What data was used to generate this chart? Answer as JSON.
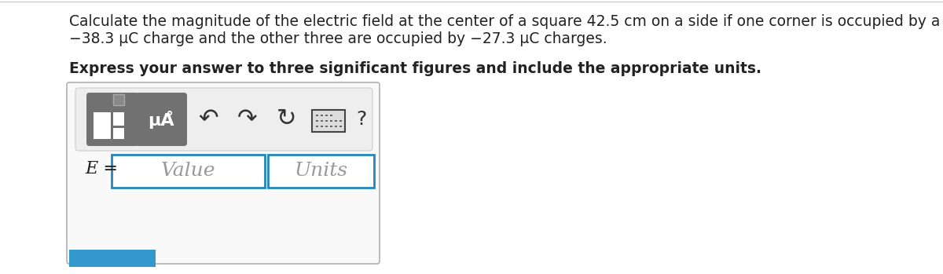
{
  "page_bg": "#ffffff",
  "main_text_line1": "Calculate the magnitude of the electric field at the center of a square 42.5 cm on a side if one corner is occupied by a",
  "main_text_line2": "−38.3 μC charge and the other three are occupied by −27.3 μC charges.",
  "bold_text": "Express your answer to three significant figures and include the appropriate units.",
  "label_E": "E =",
  "placeholder_value": "Value",
  "placeholder_units": "Units",
  "mu_label": "μÅ",
  "question_mark": "?",
  "box_outline_color": "#b0b0b0",
  "input_box_border_color": "#2288bb",
  "toolbar_bg": "#e8e8e8",
  "icon_btn_color": "#707070",
  "font_size_main": 13.5,
  "font_size_bold": 13.5,
  "text_color": "#222222",
  "placeholder_color": "#999999",
  "blue_btn_color": "#3399cc"
}
